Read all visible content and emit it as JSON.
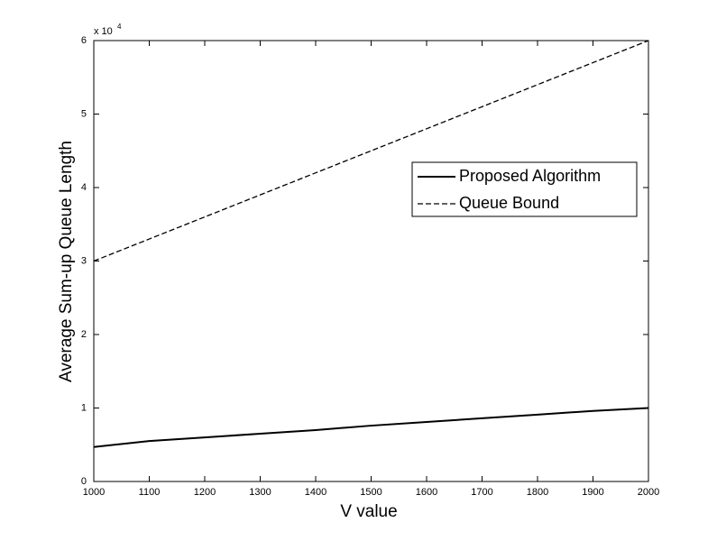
{
  "chart_data": {
    "type": "line",
    "xlabel": "V value",
    "ylabel": "Average Sum-up Queue Length",
    "y_multiplier": {
      "base": "x 10",
      "exponent": "4"
    },
    "x": [
      1000,
      1100,
      1200,
      1300,
      1400,
      1500,
      1600,
      1700,
      1800,
      1900,
      2000
    ],
    "series": [
      {
        "name": "Proposed Algorithm",
        "color": "#000000",
        "dash": "solid",
        "values": [
          0.47,
          0.55,
          0.6,
          0.65,
          0.7,
          0.76,
          0.81,
          0.86,
          0.91,
          0.96,
          1.0
        ]
      },
      {
        "name": "Queue Bound",
        "color": "#000000",
        "dash": "dashed",
        "values": [
          3.0,
          3.3,
          3.6,
          3.9,
          4.2,
          4.5,
          4.8,
          5.1,
          5.4,
          5.7,
          6.0
        ]
      }
    ],
    "xlim": [
      1000,
      2000
    ],
    "xticks": [
      1000,
      1100,
      1200,
      1300,
      1400,
      1500,
      1600,
      1700,
      1800,
      1900,
      2000
    ],
    "ylim": [
      0,
      6
    ],
    "yticks": [
      0,
      1,
      2,
      3,
      4,
      5,
      6
    ],
    "grid": false,
    "legend": "upper right"
  }
}
